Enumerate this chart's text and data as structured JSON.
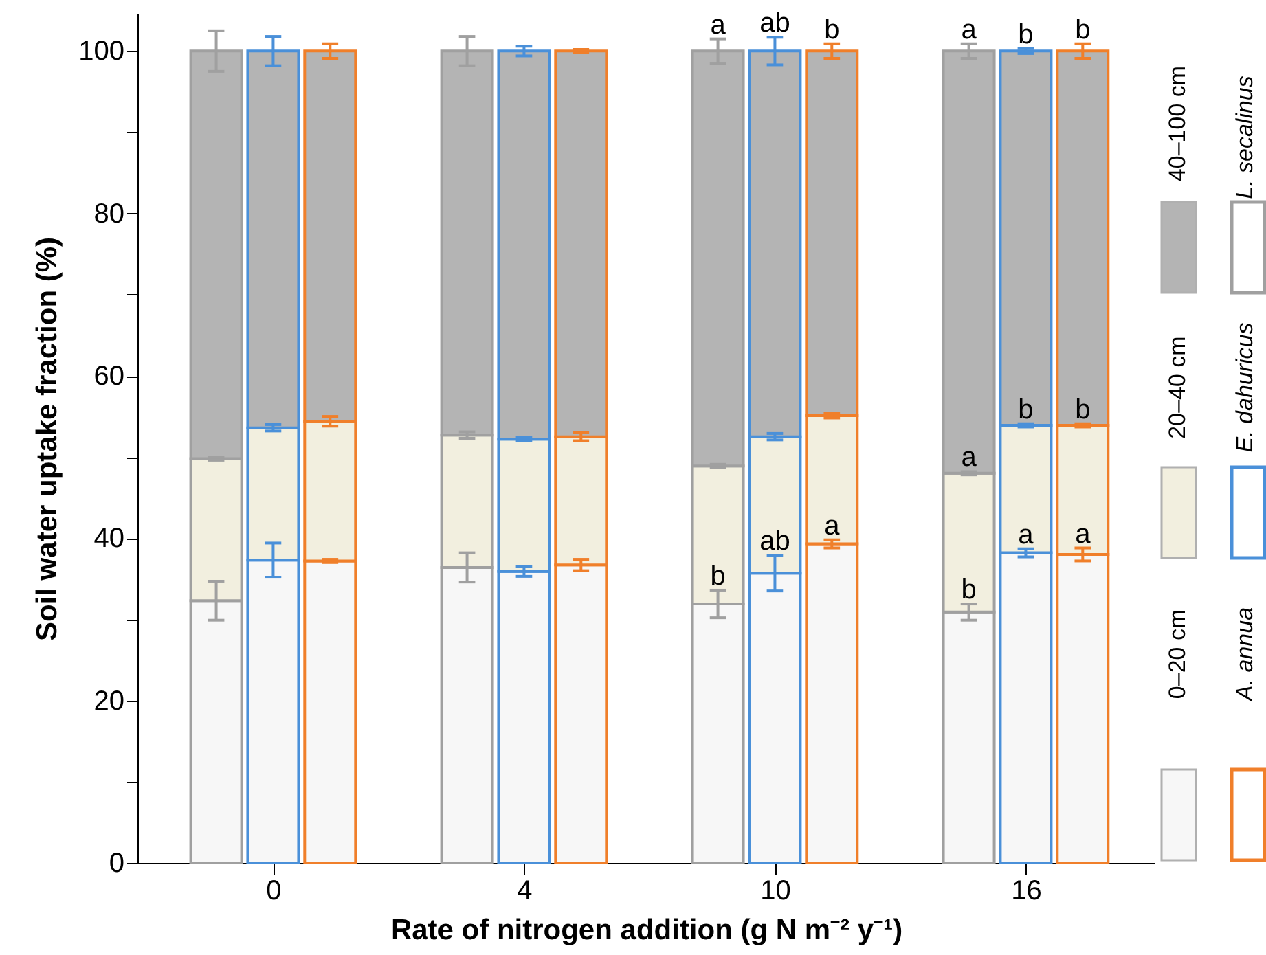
{
  "chart_data": {
    "type": "bar",
    "stacked": true,
    "xlabel": "Rate of nitrogen addition (g N m⁻² y⁻¹)",
    "ylabel": "Soil water uptake fraction (%)",
    "categories": [
      null,
      "0",
      null,
      null,
      "4",
      null,
      null,
      "10",
      null,
      null,
      "16",
      null
    ],
    "colors": [
      "#a0a0a0",
      "#4a90d9",
      "#f07f2a",
      "#a0a0a0",
      "#4a90d9",
      "#f07f2a",
      "#a0a0a0",
      "#4a90d9",
      "#f07f2a",
      "#a0a0a0",
      "#4a90d9",
      "#f07f2a"
    ],
    "annotations": [
      "L. secalinus",
      "E. dahuricus",
      "A. annua"
    ],
    "series": [
      {
        "name": "0–20 cm",
        "color": "#f7f7f7",
        "values": [
          32.3,
          37.3,
          37.2,
          36.4,
          35.9,
          36.7,
          31.9,
          35.7,
          39.3,
          30.9,
          38.2,
          38.0
        ],
        "errors": [
          2.4,
          2.1,
          0.2,
          1.8,
          0.6,
          0.7,
          1.7,
          2.2,
          0.5,
          1.0,
          0.5,
          0.8
        ],
        "value_labels": [
          null,
          null,
          null,
          null,
          null,
          null,
          "b",
          "ab",
          "a",
          "b",
          "a",
          "a"
        ]
      },
      {
        "name": "20–40 cm",
        "color": "#f2efdf",
        "values": [
          17.5,
          16.3,
          17.2,
          16.3,
          16.3,
          15.8,
          17.0,
          16.8,
          15.8,
          17.1,
          15.7,
          15.9
        ],
        "errors": [
          0.2,
          0.4,
          0.6,
          0.4,
          0.2,
          0.5,
          0.2,
          0.4,
          0.3,
          0.2,
          0.2,
          0.2
        ],
        "value_labels": [
          null,
          null,
          null,
          null,
          null,
          null,
          null,
          null,
          null,
          "a",
          "b",
          "b"
        ]
      },
      {
        "name": "40–100 cm",
        "color": "#b4b4b4",
        "values": [
          50.2,
          46.4,
          45.6,
          47.3,
          47.8,
          47.5,
          51.1,
          47.5,
          44.9,
          52.0,
          46.1,
          46.1
        ],
        "errors": [
          2.5,
          1.8,
          0.9,
          1.8,
          0.6,
          0.2,
          1.5,
          1.7,
          0.9,
          0.9,
          0.3,
          0.9
        ],
        "value_labels": [
          null,
          null,
          null,
          null,
          null,
          null,
          "a",
          "ab",
          "b",
          "a",
          "b",
          "b"
        ]
      }
    ],
    "ylim": [
      0,
      104.6
    ],
    "yticks": [
      0,
      {
        "value": 10,
        "label": null
      },
      20,
      {
        "value": 30,
        "label": null
      },
      40,
      {
        "value": 50,
        "label": null
      },
      60,
      {
        "value": 70,
        "label": null
      },
      80,
      {
        "value": 90,
        "label": null
      },
      100
    ],
    "grid": false,
    "legend": "right"
  }
}
